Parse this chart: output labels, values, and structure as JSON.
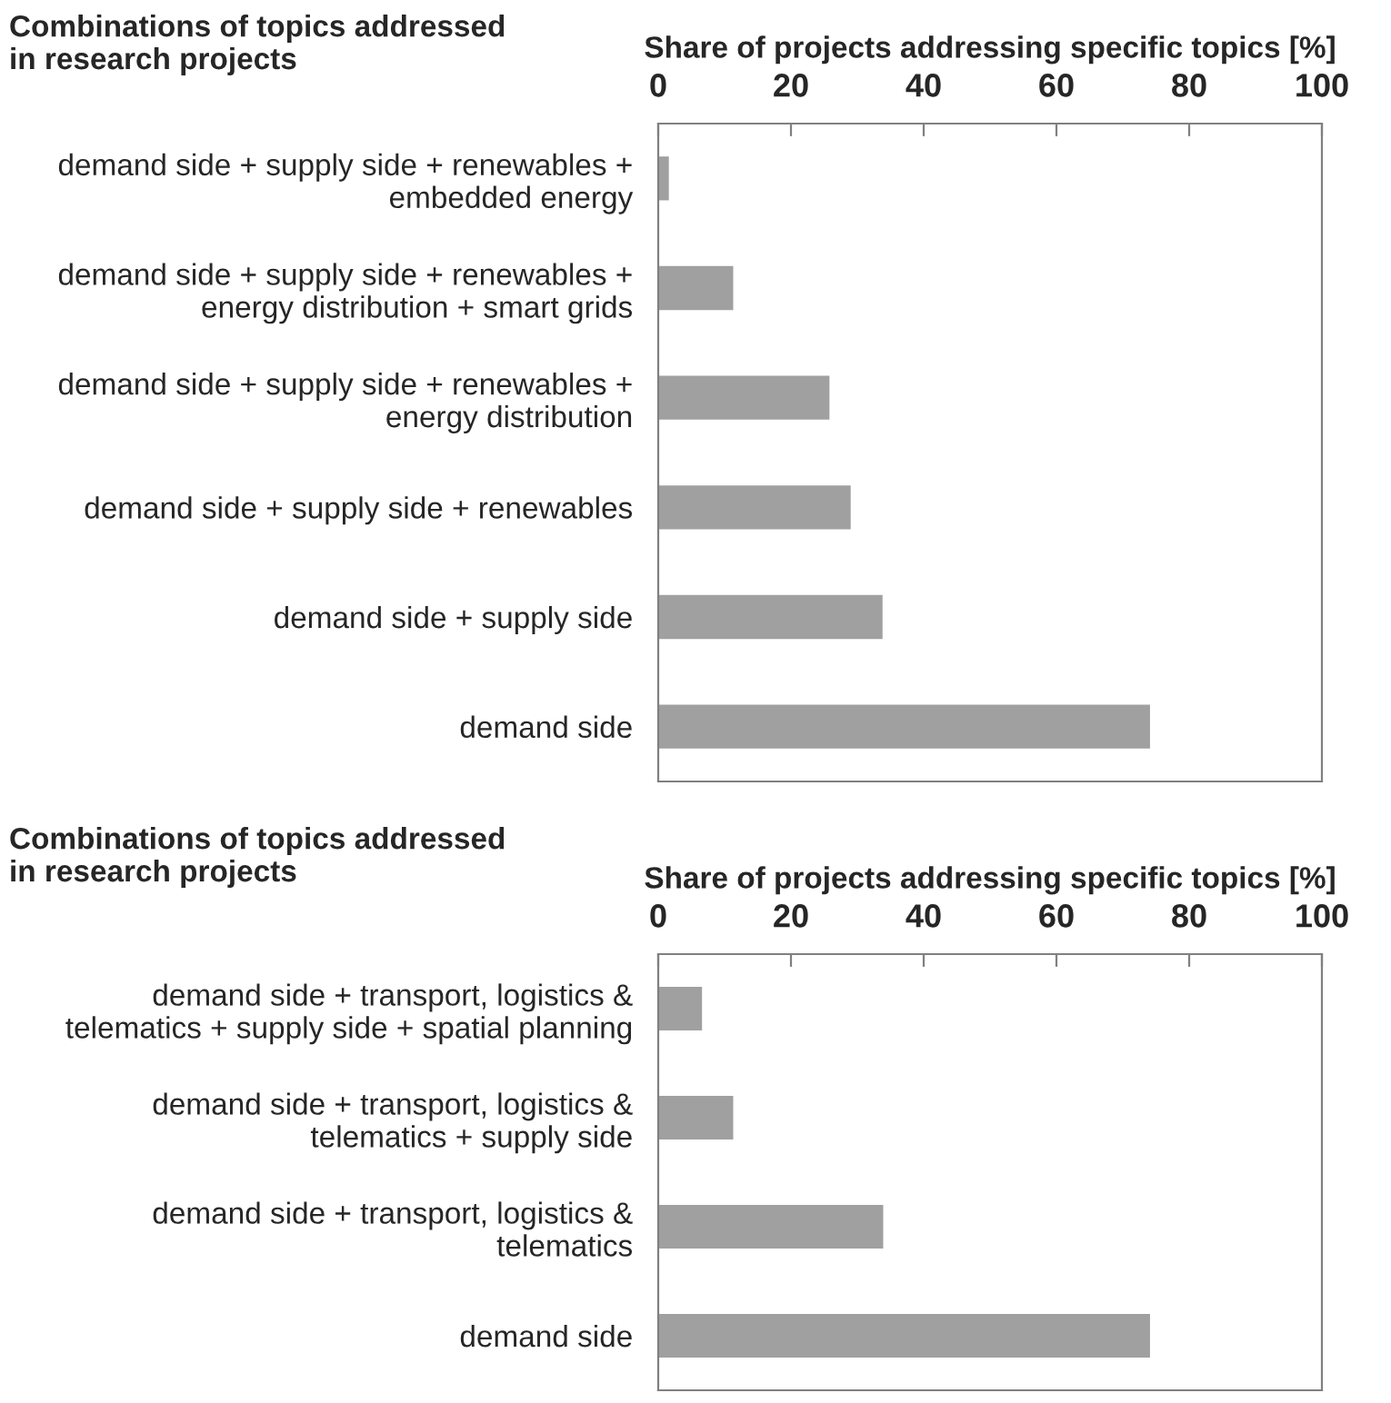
{
  "chart_data": [
    {
      "type": "bar",
      "orientation": "horizontal",
      "title": "Combinations of topics addressed in research projects",
      "xlabel": "Share of projects addressing specific topics [%]",
      "categories": [
        "demand side + supply side + renewables + embedded energy",
        "demand side + supply side + renewables + energy distribution + smart grids",
        "demand side + supply side + renewables + energy distribution",
        "demand side + supply side + renewables",
        "demand side + supply side",
        "demand side"
      ],
      "values": [
        1.6,
        11.3,
        25.8,
        29.0,
        33.8,
        74.1
      ],
      "color": "#a0a0a0",
      "xlim": [
        0,
        100
      ],
      "xticks": [
        0,
        20,
        40,
        60,
        80,
        100
      ]
    },
    {
      "type": "bar",
      "orientation": "horizontal",
      "title": "Combinations of topics addressed in research projects",
      "xlabel": "Share of projects addressing specific topics [%]",
      "categories": [
        "demand side + transport, logistics & telematics + supply side + spatial planning",
        "demand side + transport, logistics & telematics + supply side",
        "demand side + transport, logistics & telematics",
        "demand side"
      ],
      "values": [
        6.6,
        11.3,
        33.9,
        74.1
      ],
      "color": "#a0a0a0",
      "xlim": [
        0,
        100
      ],
      "xticks": [
        0,
        20,
        40,
        60,
        80,
        100
      ]
    }
  ]
}
